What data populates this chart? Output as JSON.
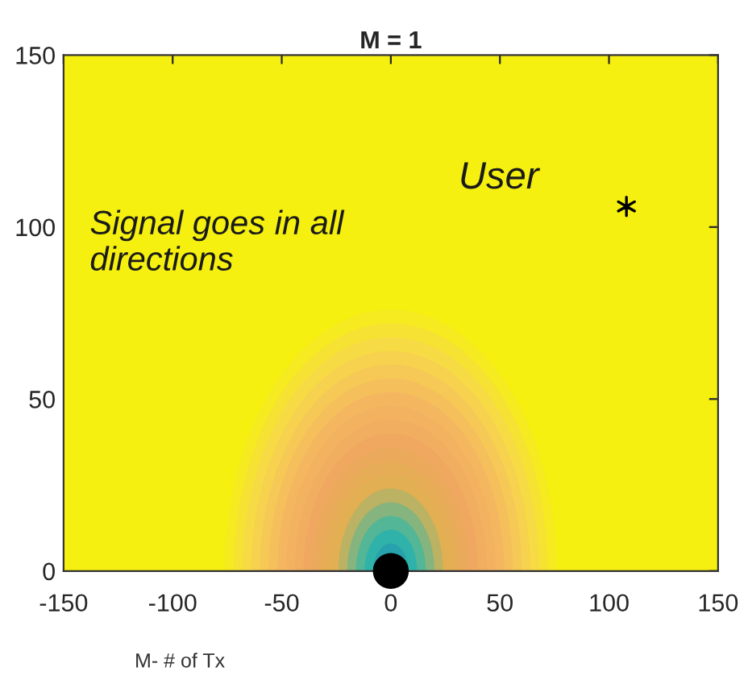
{
  "chart_data": {
    "type": "scatter",
    "title": "M = 1",
    "series": [
      {
        "color": "#000000",
        "marker": "circle",
        "x": [
          0
        ],
        "values": [
          0
        ]
      },
      {
        "color": "#000000",
        "marker": "cross",
        "x": [
          108
        ],
        "values": [
          106
        ]
      }
    ],
    "xlim": [
      -150,
      150
    ],
    "ylim": [
      0,
      150
    ],
    "xticks": [
      -150,
      -100,
      -50,
      0,
      50,
      100,
      150
    ],
    "yticks": [
      0,
      50,
      100,
      150
    ],
    "grid": false,
    "legend": false,
    "annotations": [
      {
        "text": "User",
        "x": 108,
        "y": 106
      },
      "Signal goes in all directions",
      "M- # of Tx"
    ]
  }
}
